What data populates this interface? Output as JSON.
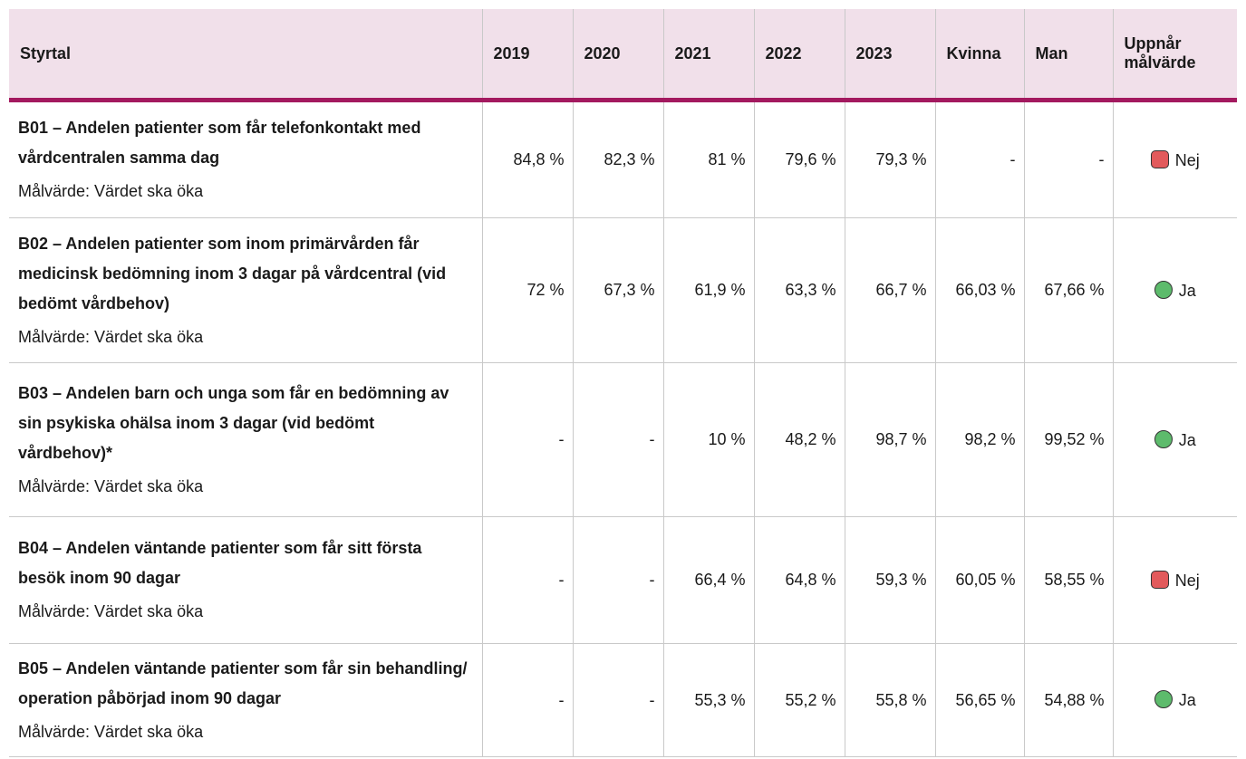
{
  "table": {
    "header": [
      "Styrtal",
      "2019",
      "2020",
      "2021",
      "2022",
      "2023",
      "Kvinna",
      "Man",
      "Uppnår målvärde"
    ],
    "rows": [
      {
        "title": "B01 – Andelen patienter som får telefonkontakt med vårdcentralen samma dag",
        "target": "Målvärde: Värdet ska öka",
        "values": [
          "84,8 %",
          "82,3 %",
          "81 %",
          "79,6 %",
          "79,3 %",
          "-",
          "-"
        ],
        "status": "Nej"
      },
      {
        "title": "B02 – Andelen patienter som inom primärvården får medicinsk bedömning inom 3 dagar på vårdcentral (vid bedömt vårdbehov)",
        "target": "Målvärde: Värdet ska öka",
        "values": [
          "72 %",
          "67,3 %",
          "61,9 %",
          "63,3 %",
          "66,7 %",
          "66,03 %",
          "67,66 %"
        ],
        "status": "Ja"
      },
      {
        "title": "B03 – Andelen barn och unga som får en bedömning av sin psykiska ohälsa inom 3 dagar (vid bedömt vårdbehov)*",
        "target": "Målvärde: Värdet ska öka",
        "values": [
          "-",
          "-",
          "10 %",
          "48,2 %",
          "98,7 %",
          "98,2 %",
          "99,52 %"
        ],
        "status": "Ja"
      },
      {
        "title": "B04 – Andelen väntande patienter som får sitt första besök inom 90 dagar",
        "target": "Målvärde: Värdet ska öka",
        "values": [
          "-",
          "-",
          "66,4 %",
          "64,8 %",
          "59,3 %",
          "60,05 %",
          "58,55 %"
        ],
        "status": "Nej"
      },
      {
        "title": "B05 – Andelen väntande patienter som får sin behandling/ operation påbörjad inom 90 dagar",
        "target": "Målvärde: Värdet ska öka",
        "values": [
          "-",
          "-",
          "55,3 %",
          "55,2 %",
          "55,8 %",
          "56,65 %",
          "54,88 %"
        ],
        "status": "Ja"
      }
    ]
  }
}
